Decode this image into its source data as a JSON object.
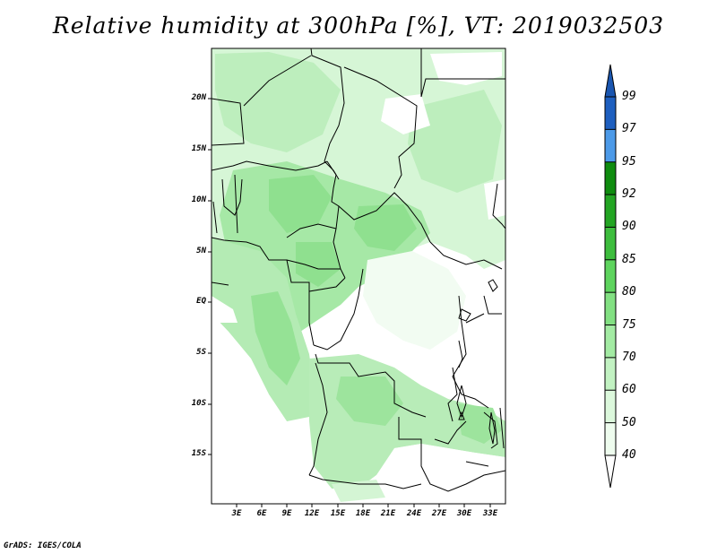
{
  "title": "Relative humidity at 300hPa [%], VT: 2019032503",
  "credit": "GrADS: IGES/COLA",
  "latitude_labels": [
    "20N",
    "15N",
    "10N",
    "5N",
    "EQ",
    "5S",
    "10S",
    "15S"
  ],
  "longitude_labels": [
    "3E",
    "6E",
    "9E",
    "12E",
    "15E",
    "18E",
    "21E",
    "24E",
    "27E",
    "30E",
    "33E"
  ],
  "colorbar": {
    "labels": [
      "99",
      "97",
      "95",
      "92",
      "90",
      "85",
      "80",
      "75",
      "70",
      "60",
      "50",
      "40"
    ],
    "colors": [
      "#1e5fbf",
      "#2a78d6",
      "#4c9ae8",
      "#0f8c0f",
      "#23a523",
      "#3dbd3d",
      "#5ed45e",
      "#82e082",
      "#a3eba3",
      "#c2f2c2",
      "#dcf8dc",
      "#eefcee"
    ]
  },
  "map": {
    "fill_colors": {
      "light": "#d2f5d2",
      "medium": "#aee9ae",
      "strong": "#86dc86"
    }
  }
}
